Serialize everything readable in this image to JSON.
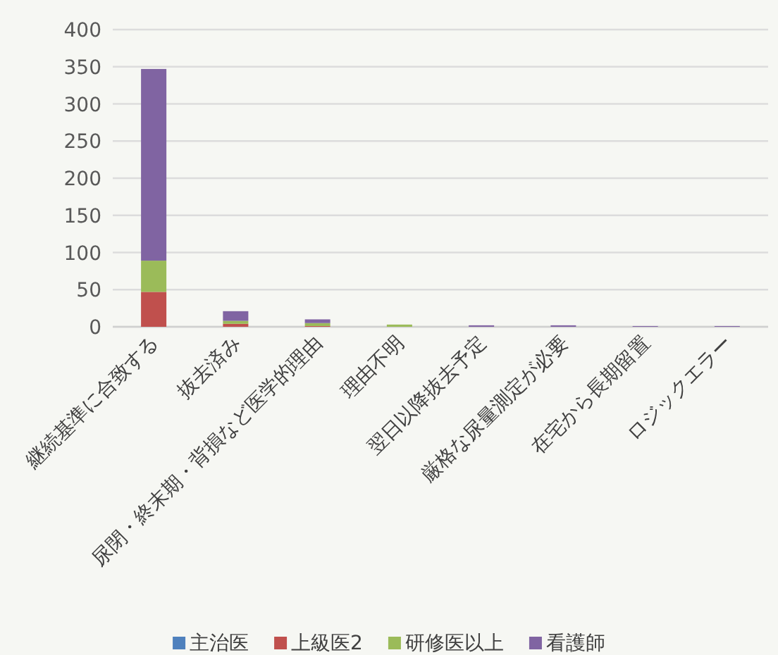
{
  "chart_data": {
    "type": "bar",
    "stacked": true,
    "categories": [
      "継続基準に合致する",
      "抜去済み",
      "尿閉・終末期・背損など医学的理由",
      "理由不明",
      "翌日以降抜去予定",
      "厳格な尿量測定が必要",
      "在宅から長期留置",
      "ロジックエラー"
    ],
    "series": [
      {
        "name": "主治医",
        "color": "#4f81bd",
        "values": [
          0,
          0,
          0,
          0,
          0,
          0,
          0,
          0
        ]
      },
      {
        "name": "上級医2",
        "color": "#c0504d",
        "values": [
          47,
          4,
          1,
          0,
          0,
          0,
          0,
          0
        ]
      },
      {
        "name": "研修医以上",
        "color": "#9bbb59",
        "values": [
          42,
          4,
          4,
          3,
          0,
          0,
          0,
          0
        ]
      },
      {
        "name": "看護師",
        "color": "#8064a2",
        "values": [
          258,
          13,
          5,
          0,
          2,
          2,
          1,
          1
        ]
      }
    ],
    "ylim": [
      0,
      400
    ],
    "yticks": [
      0,
      50,
      100,
      150,
      200,
      250,
      300,
      350,
      400
    ],
    "grid": "y",
    "legend": "bottom"
  }
}
